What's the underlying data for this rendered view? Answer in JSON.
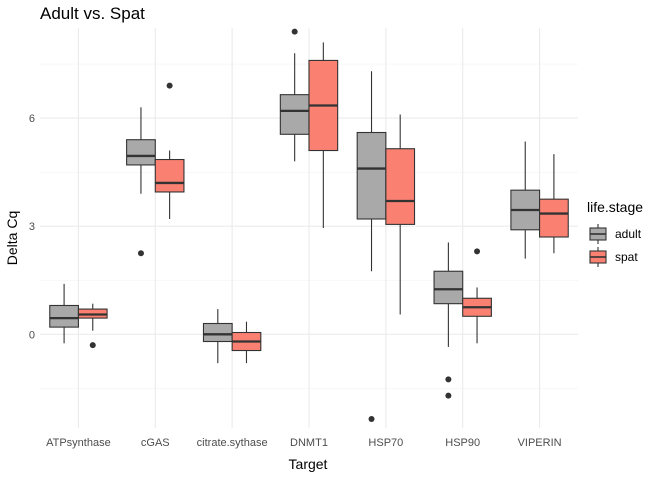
{
  "chart_data": {
    "type": "boxplot",
    "title": "Adult vs. Spat",
    "xlabel": "Target",
    "ylabel": "Delta Cq",
    "ylim": [
      -2.6,
      8.5
    ],
    "yticks": [
      0,
      3,
      6
    ],
    "grid": true,
    "legend": {
      "title": "life.stage",
      "position": "right",
      "entries": [
        "adult",
        "spat"
      ]
    },
    "categories": [
      "ATPsynthase",
      "cGAS",
      "citrate.sythase",
      "DNMT1",
      "HSP70",
      "HSP90",
      "VIPERIN"
    ],
    "series": [
      {
        "name": "adult",
        "color": "#A9A9A9",
        "boxes": [
          {
            "min": -0.25,
            "q1": 0.2,
            "median": 0.45,
            "q3": 0.8,
            "max": 1.4,
            "outliers": []
          },
          {
            "min": 3.9,
            "q1": 4.7,
            "median": 4.95,
            "q3": 5.4,
            "max": 6.3,
            "outliers": [
              2.25
            ]
          },
          {
            "min": -0.8,
            "q1": -0.2,
            "median": 0.0,
            "q3": 0.3,
            "max": 0.7,
            "outliers": []
          },
          {
            "min": 4.8,
            "q1": 5.55,
            "median": 6.2,
            "q3": 6.65,
            "max": 7.8,
            "outliers": [
              8.4
            ]
          },
          {
            "min": 1.75,
            "q1": 3.2,
            "median": 4.6,
            "q3": 5.6,
            "max": 7.3,
            "outliers": [
              -2.35
            ]
          },
          {
            "min": -0.35,
            "q1": 0.85,
            "median": 1.25,
            "q3": 1.75,
            "max": 2.55,
            "outliers": [
              -1.25,
              -1.7
            ]
          },
          {
            "min": 2.1,
            "q1": 2.9,
            "median": 3.45,
            "q3": 4.0,
            "max": 5.35,
            "outliers": []
          }
        ]
      },
      {
        "name": "spat",
        "color": "#FA8072",
        "boxes": [
          {
            "min": 0.1,
            "q1": 0.45,
            "median": 0.55,
            "q3": 0.7,
            "max": 0.85,
            "outliers": [
              -0.3
            ]
          },
          {
            "min": 3.2,
            "q1": 3.95,
            "median": 4.2,
            "q3": 4.85,
            "max": 5.1,
            "outliers": [
              6.9
            ]
          },
          {
            "min": -0.8,
            "q1": -0.45,
            "median": -0.2,
            "q3": 0.05,
            "max": 0.35,
            "outliers": []
          },
          {
            "min": 2.95,
            "q1": 5.1,
            "median": 6.35,
            "q3": 7.6,
            "max": 8.1,
            "outliers": []
          },
          {
            "min": 0.55,
            "q1": 3.05,
            "median": 3.7,
            "q3": 5.15,
            "max": 6.1,
            "outliers": []
          },
          {
            "min": -0.25,
            "q1": 0.5,
            "median": 0.75,
            "q3": 1.0,
            "max": 1.3,
            "outliers": [
              2.3
            ]
          },
          {
            "min": 2.25,
            "q1": 2.7,
            "median": 3.35,
            "q3": 3.75,
            "max": 5.0,
            "outliers": []
          }
        ]
      }
    ]
  }
}
